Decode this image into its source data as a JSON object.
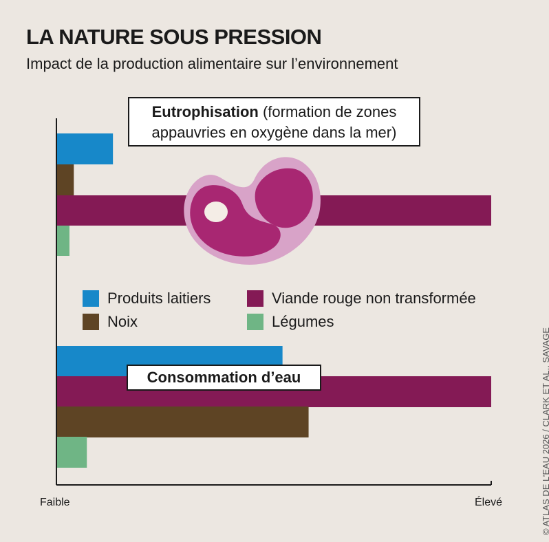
{
  "title": "LA NATURE SOUS PRESSION",
  "subtitle": "Impact de la production alimentaire sur l’environnement",
  "credit": "© ATLAS DE L’EAU 2026 / CLARK ET AL., SAVAGE",
  "colors": {
    "dairy": "#1788c9",
    "nuts": "#5e4424",
    "red_meat": "#841a55",
    "vegetables": "#6fb585",
    "meat_fat": "#d8a3c8",
    "meat_flesh": "#a82772"
  },
  "chart_data": {
    "type": "bar",
    "orientation": "horizontal",
    "x_axis": {
      "min_label": "Faible",
      "max_label": "Élevé",
      "range": [
        0,
        100
      ]
    },
    "series_names": [
      "Produits laitiers",
      "Noix",
      "Viande rouge non transformée",
      "Légumes"
    ],
    "groups": [
      {
        "title_bold": "Eutrophisation",
        "title_rest": " (formation de zones",
        "title_line2": "appauvries en oxygène dans la mer)",
        "bars": [
          {
            "series": "Produits laitiers",
            "value": 13
          },
          {
            "series": "Noix",
            "value": 4
          },
          {
            "series": "Viande rouge non transformée",
            "value": 100
          },
          {
            "series": "Légumes",
            "value": 3
          }
        ]
      },
      {
        "title": "Consommation d’eau",
        "bars": [
          {
            "series": "Produits laitiers",
            "value": 52
          },
          {
            "series": "Viande rouge non transformée",
            "value": 100
          },
          {
            "series": "Noix",
            "value": 58
          },
          {
            "series": "Légumes",
            "value": 7
          }
        ]
      }
    ],
    "legend": [
      {
        "label": "Produits laitiers",
        "color_key": "dairy"
      },
      {
        "label": "Viande rouge non transformée",
        "color_key": "red_meat"
      },
      {
        "label": "Noix",
        "color_key": "nuts"
      },
      {
        "label": "Légumes",
        "color_key": "vegetables"
      }
    ]
  }
}
